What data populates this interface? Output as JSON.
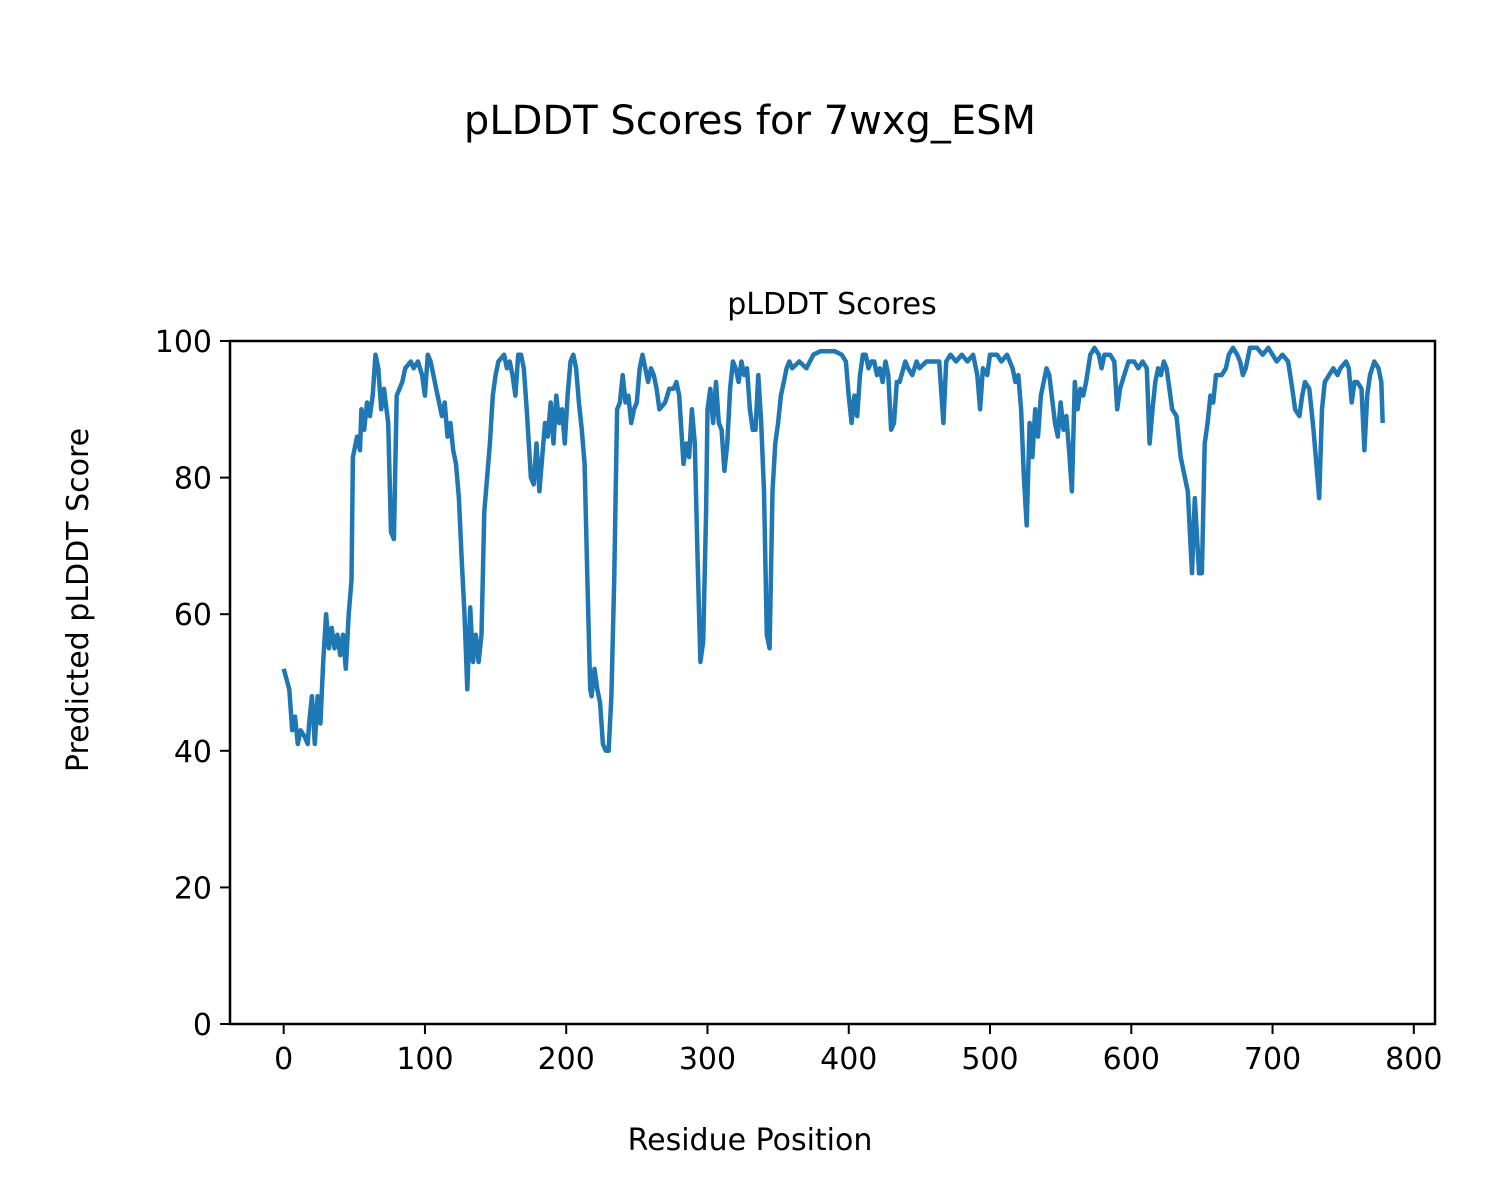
{
  "chart_data": {
    "type": "line",
    "suptitle": "pLDDT Scores for 7wxg_ESM",
    "title": "pLDDT Scores",
    "xlabel": "Residue Position",
    "ylabel": "Predicted pLDDT Score",
    "xlim": [
      -38,
      815
    ],
    "ylim": [
      0,
      100
    ],
    "xticks": [
      0,
      100,
      200,
      300,
      400,
      500,
      600,
      700,
      800
    ],
    "yticks": [
      0,
      20,
      40,
      60,
      80,
      100
    ],
    "grid": false,
    "series": [
      {
        "name": "pLDDT",
        "color": "#1f77b4",
        "points": [
          [
            0,
            52
          ],
          [
            4,
            49
          ],
          [
            6,
            43
          ],
          [
            8,
            45
          ],
          [
            10,
            41
          ],
          [
            12,
            43
          ],
          [
            15,
            42
          ],
          [
            17,
            41
          ],
          [
            18,
            44
          ],
          [
            20,
            48
          ],
          [
            22,
            41
          ],
          [
            24,
            48
          ],
          [
            26,
            44
          ],
          [
            28,
            53
          ],
          [
            30,
            60
          ],
          [
            32,
            55
          ],
          [
            34,
            58
          ],
          [
            36,
            55
          ],
          [
            38,
            57
          ],
          [
            40,
            54
          ],
          [
            42,
            57
          ],
          [
            44,
            52
          ],
          [
            46,
            60
          ],
          [
            48,
            65
          ],
          [
            49,
            83
          ],
          [
            52,
            86
          ],
          [
            54,
            84
          ],
          [
            55,
            90
          ],
          [
            57,
            87
          ],
          [
            59,
            91
          ],
          [
            61,
            89
          ],
          [
            63,
            92
          ],
          [
            65,
            98
          ],
          [
            67,
            96
          ],
          [
            69,
            90
          ],
          [
            71,
            93
          ],
          [
            74,
            88
          ],
          [
            76,
            72
          ],
          [
            78,
            71
          ],
          [
            80,
            92
          ],
          [
            84,
            94
          ],
          [
            86,
            96
          ],
          [
            90,
            97
          ],
          [
            92,
            96
          ],
          [
            95,
            97
          ],
          [
            98,
            95
          ],
          [
            100,
            92
          ],
          [
            102,
            98
          ],
          [
            104,
            97
          ],
          [
            106,
            95
          ],
          [
            108,
            93
          ],
          [
            110,
            91
          ],
          [
            112,
            89
          ],
          [
            114,
            91
          ],
          [
            116,
            86
          ],
          [
            118,
            88
          ],
          [
            120,
            84
          ],
          [
            122,
            82
          ],
          [
            124,
            77
          ],
          [
            126,
            68
          ],
          [
            128,
            60
          ],
          [
            130,
            49
          ],
          [
            132,
            61
          ],
          [
            134,
            53
          ],
          [
            136,
            57
          ],
          [
            138,
            53
          ],
          [
            140,
            57
          ],
          [
            142,
            75
          ],
          [
            146,
            85
          ],
          [
            148,
            92
          ],
          [
            150,
            95
          ],
          [
            152,
            97
          ],
          [
            156,
            98
          ],
          [
            158,
            96
          ],
          [
            160,
            97
          ],
          [
            162,
            95
          ],
          [
            164,
            92
          ],
          [
            166,
            98
          ],
          [
            168,
            98
          ],
          [
            170,
            96
          ],
          [
            172,
            90
          ],
          [
            175,
            80
          ],
          [
            177,
            79
          ],
          [
            179,
            85
          ],
          [
            181,
            78
          ],
          [
            183,
            83
          ],
          [
            185,
            88
          ],
          [
            187,
            86
          ],
          [
            189,
            91
          ],
          [
            191,
            85
          ],
          [
            193,
            92
          ],
          [
            195,
            88
          ],
          [
            197,
            90
          ],
          [
            199,
            85
          ],
          [
            201,
            92
          ],
          [
            203,
            97
          ],
          [
            205,
            98
          ],
          [
            207,
            96
          ],
          [
            209,
            91
          ],
          [
            211,
            87
          ],
          [
            213,
            82
          ],
          [
            215,
            65
          ],
          [
            217,
            49
          ],
          [
            218,
            48
          ],
          [
            220,
            52
          ],
          [
            222,
            49
          ],
          [
            224,
            47
          ],
          [
            226,
            41
          ],
          [
            228,
            40
          ],
          [
            230,
            40
          ],
          [
            232,
            48
          ],
          [
            234,
            65
          ],
          [
            236,
            90
          ],
          [
            238,
            91
          ],
          [
            240,
            95
          ],
          [
            242,
            91
          ],
          [
            244,
            92
          ],
          [
            246,
            88
          ],
          [
            248,
            90
          ],
          [
            250,
            91
          ],
          [
            252,
            96
          ],
          [
            254,
            98
          ],
          [
            256,
            96
          ],
          [
            258,
            94
          ],
          [
            260,
            96
          ],
          [
            262,
            95
          ],
          [
            264,
            93
          ],
          [
            266,
            90
          ],
          [
            270,
            91
          ],
          [
            273,
            93
          ],
          [
            276,
            93
          ],
          [
            278,
            94
          ],
          [
            280,
            92
          ],
          [
            283,
            82
          ],
          [
            285,
            85
          ],
          [
            287,
            83
          ],
          [
            289,
            90
          ],
          [
            291,
            85
          ],
          [
            293,
            68
          ],
          [
            295,
            53
          ],
          [
            297,
            56
          ],
          [
            299,
            75
          ],
          [
            300,
            90
          ],
          [
            302,
            93
          ],
          [
            304,
            88
          ],
          [
            306,
            94
          ],
          [
            308,
            88
          ],
          [
            310,
            87
          ],
          [
            312,
            81
          ],
          [
            314,
            85
          ],
          [
            316,
            93
          ],
          [
            318,
            97
          ],
          [
            320,
            96
          ],
          [
            322,
            94
          ],
          [
            324,
            97
          ],
          [
            326,
            95
          ],
          [
            328,
            96
          ],
          [
            330,
            90
          ],
          [
            332,
            87
          ],
          [
            334,
            87
          ],
          [
            336,
            95
          ],
          [
            338,
            88
          ],
          [
            340,
            78
          ],
          [
            342,
            57
          ],
          [
            344,
            55
          ],
          [
            346,
            78
          ],
          [
            348,
            85
          ],
          [
            350,
            88
          ],
          [
            352,
            92
          ],
          [
            354,
            94
          ],
          [
            356,
            96
          ],
          [
            358,
            97
          ],
          [
            360,
            96
          ],
          [
            365,
            97
          ],
          [
            370,
            96
          ],
          [
            375,
            98
          ],
          [
            380,
            98.5
          ],
          [
            390,
            98.5
          ],
          [
            395,
            98
          ],
          [
            398,
            97
          ],
          [
            400,
            92
          ],
          [
            402,
            88
          ],
          [
            404,
            92
          ],
          [
            406,
            89
          ],
          [
            408,
            95
          ],
          [
            410,
            98
          ],
          [
            412,
            98
          ],
          [
            414,
            96
          ],
          [
            416,
            97
          ],
          [
            418,
            97
          ],
          [
            420,
            95
          ],
          [
            422,
            96
          ],
          [
            424,
            94
          ],
          [
            426,
            97
          ],
          [
            428,
            95
          ],
          [
            430,
            87
          ],
          [
            432,
            88
          ],
          [
            434,
            94
          ],
          [
            436,
            94
          ],
          [
            440,
            97
          ],
          [
            442,
            96
          ],
          [
            445,
            95
          ],
          [
            448,
            97
          ],
          [
            450,
            96
          ],
          [
            455,
            97
          ],
          [
            464,
            97
          ],
          [
            467,
            88
          ],
          [
            469,
            97
          ],
          [
            472,
            98
          ],
          [
            476,
            97
          ],
          [
            480,
            98
          ],
          [
            484,
            97
          ],
          [
            488,
            98
          ],
          [
            491,
            95
          ],
          [
            493,
            90
          ],
          [
            495,
            96
          ],
          [
            498,
            95
          ],
          [
            500,
            98
          ],
          [
            505,
            98
          ],
          [
            508,
            97
          ],
          [
            512,
            98
          ],
          [
            516,
            96
          ],
          [
            518,
            94
          ],
          [
            520,
            95
          ],
          [
            522,
            90
          ],
          [
            524,
            80
          ],
          [
            526,
            73
          ],
          [
            528,
            88
          ],
          [
            530,
            83
          ],
          [
            532,
            90
          ],
          [
            534,
            86
          ],
          [
            536,
            92
          ],
          [
            538,
            94
          ],
          [
            540,
            96
          ],
          [
            542,
            95
          ],
          [
            546,
            88
          ],
          [
            548,
            86
          ],
          [
            550,
            91
          ],
          [
            552,
            87
          ],
          [
            554,
            89
          ],
          [
            556,
            84
          ],
          [
            558,
            78
          ],
          [
            560,
            94
          ],
          [
            562,
            90
          ],
          [
            564,
            93
          ],
          [
            566,
            92
          ],
          [
            568,
            94
          ],
          [
            571,
            98
          ],
          [
            574,
            99
          ],
          [
            577,
            98
          ],
          [
            579,
            96
          ],
          [
            581,
            98
          ],
          [
            585,
            98
          ],
          [
            588,
            97
          ],
          [
            590,
            90
          ],
          [
            592,
            93
          ],
          [
            595,
            95
          ],
          [
            598,
            97
          ],
          [
            602,
            97
          ],
          [
            605,
            96
          ],
          [
            608,
            97
          ],
          [
            611,
            96
          ],
          [
            613,
            85
          ],
          [
            615,
            90
          ],
          [
            617,
            94
          ],
          [
            619,
            96
          ],
          [
            621,
            95
          ],
          [
            623,
            97
          ],
          [
            625,
            96
          ],
          [
            627,
            93
          ],
          [
            629,
            90
          ],
          [
            632,
            89
          ],
          [
            635,
            83
          ],
          [
            637,
            81
          ],
          [
            640,
            78
          ],
          [
            643,
            66
          ],
          [
            645,
            77
          ],
          [
            648,
            66
          ],
          [
            650,
            66
          ],
          [
            652,
            85
          ],
          [
            654,
            88
          ],
          [
            656,
            92
          ],
          [
            658,
            91
          ],
          [
            660,
            95
          ],
          [
            664,
            95
          ],
          [
            667,
            96
          ],
          [
            669,
            98
          ],
          [
            672,
            99
          ],
          [
            675,
            98
          ],
          [
            677,
            97
          ],
          [
            679,
            95
          ],
          [
            681,
            96
          ],
          [
            684,
            99
          ],
          [
            689,
            99
          ],
          [
            693,
            98
          ],
          [
            697,
            99
          ],
          [
            700,
            98
          ],
          [
            703,
            97
          ],
          [
            707,
            98
          ],
          [
            711,
            97
          ],
          [
            714,
            93
          ],
          [
            716,
            90
          ],
          [
            719,
            89
          ],
          [
            721,
            92
          ],
          [
            723,
            94
          ],
          [
            726,
            93
          ],
          [
            729,
            87
          ],
          [
            733,
            77
          ],
          [
            735,
            90
          ],
          [
            737,
            94
          ],
          [
            740,
            95
          ],
          [
            743,
            96
          ],
          [
            746,
            95
          ],
          [
            748,
            96
          ],
          [
            752,
            97
          ],
          [
            754,
            96
          ],
          [
            756,
            91
          ],
          [
            758,
            94
          ],
          [
            760,
            94
          ],
          [
            763,
            93
          ],
          [
            765,
            84
          ],
          [
            767,
            92
          ],
          [
            769,
            95
          ],
          [
            772,
            97
          ],
          [
            775,
            96
          ],
          [
            777,
            94
          ],
          [
            778,
            88
          ]
        ]
      }
    ]
  }
}
